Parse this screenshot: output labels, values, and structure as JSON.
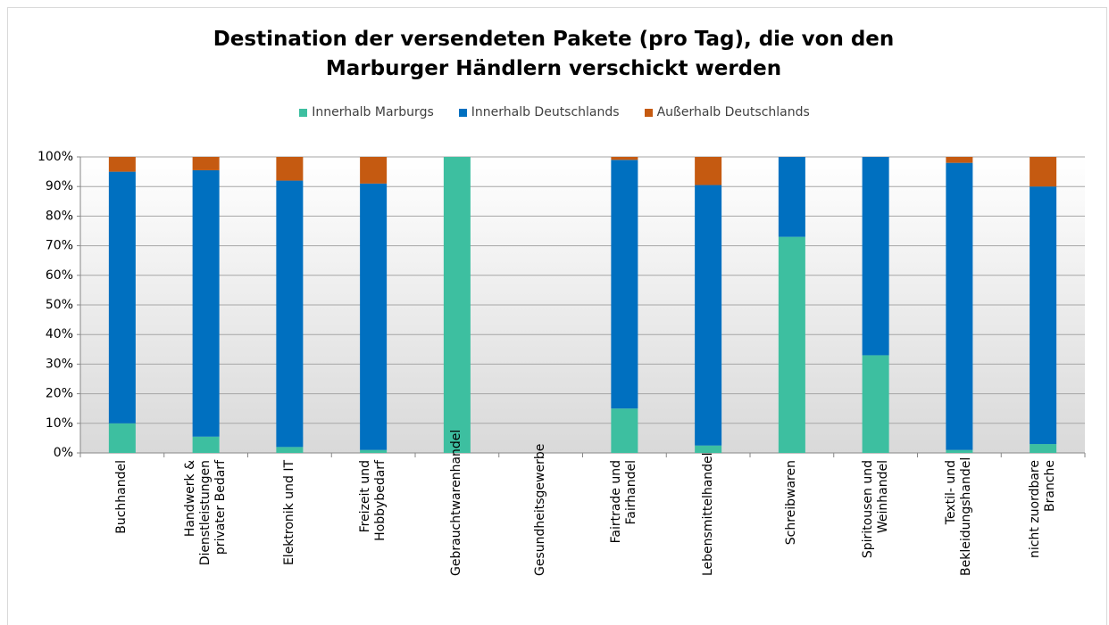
{
  "chart_data": {
    "type": "stacked_bar",
    "title": "Destination der versendeten Pakete (pro Tag), die von den Marburger Händlern verschickt werden",
    "categories": [
      "Buchhandel",
      "Handwerk & Dienstleistungen privater Bedarf",
      "Elektronik und IT",
      "Freizeit und Hobbybedarf",
      "Gebrauchtwarenhandel",
      "Gesundheitsgewerbe",
      "Fairtrade und Fairhandel",
      "Lebensmittelhandel",
      "Schreibwaren",
      "Spiritousen und Weinhandel",
      "Textil- und Bekleidungshandel",
      "nicht zuordbare Branche"
    ],
    "series": [
      {
        "name": "Innerhalb Marburgs",
        "color": "#3dbfa0",
        "values": [
          10,
          5.5,
          2,
          1,
          100,
          0,
          15,
          2.5,
          73,
          33,
          1,
          3
        ]
      },
      {
        "name": "Innerhalb Deutschlands",
        "color": "#0070c0",
        "values": [
          85,
          90,
          90,
          90,
          0,
          0,
          84,
          88,
          27,
          67,
          97,
          87
        ]
      },
      {
        "name": "Außerhalb Deutschlands",
        "color": "#c55a11",
        "values": [
          5,
          4.5,
          8,
          9,
          0,
          0,
          1,
          9.5,
          0,
          0,
          2,
          10
        ]
      }
    ],
    "ylim": [
      0,
      100
    ],
    "yticks": [
      {
        "value": 0,
        "label": "0%"
      },
      {
        "value": 10,
        "label": "10%"
      },
      {
        "value": 20,
        "label": "20%"
      },
      {
        "value": 30,
        "label": "30%"
      },
      {
        "value": 40,
        "label": "40%"
      },
      {
        "value": 50,
        "label": "50%"
      },
      {
        "value": 60,
        "label": "60%"
      },
      {
        "value": 70,
        "label": "70%"
      },
      {
        "value": 80,
        "label": "80%"
      },
      {
        "value": 90,
        "label": "90%"
      },
      {
        "value": 100,
        "label": "100%"
      }
    ],
    "grid": true,
    "legend": "top"
  }
}
